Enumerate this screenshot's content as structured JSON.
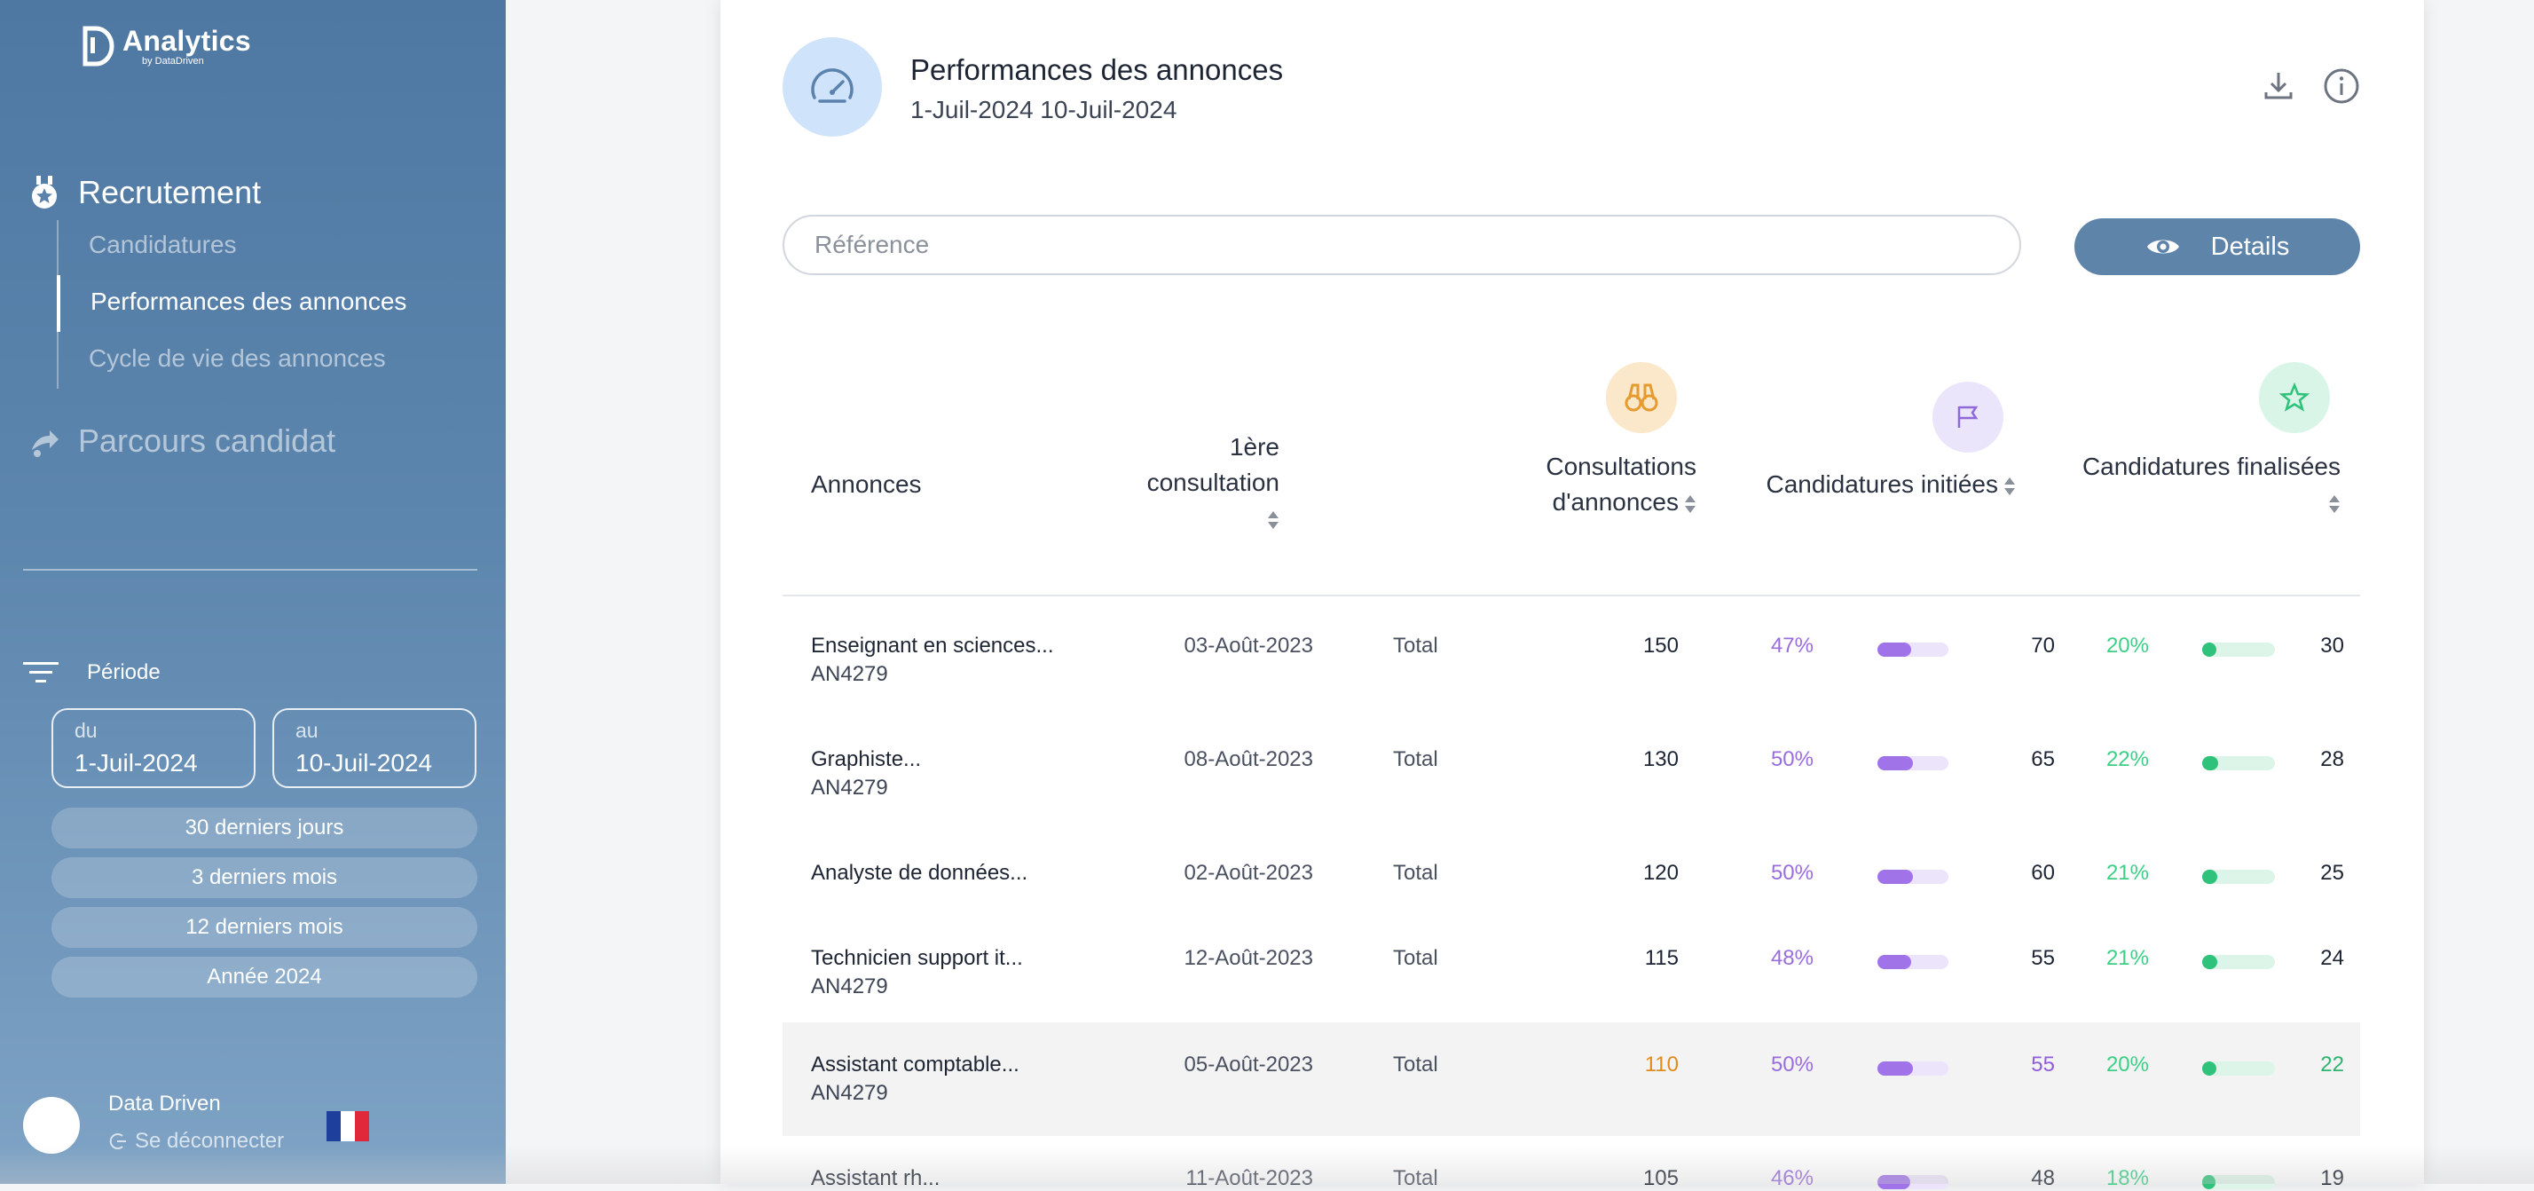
{
  "brand": {
    "name": "Analytics",
    "sub": "by DataDriven"
  },
  "nav": {
    "recrutement": "Recrutement",
    "items": [
      "Candidatures",
      "Performances des annonces",
      "Cycle de vie des annonces"
    ],
    "parcours": "Parcours candidat"
  },
  "periode": {
    "title": "Période",
    "from_label": "du",
    "from_value": "1-Juil-2024",
    "to_label": "au",
    "to_value": "10-Juil-2024",
    "presets": [
      "30 derniers jours",
      "3 derniers mois",
      "12 derniers mois",
      "Année 2024"
    ]
  },
  "user": {
    "name": "Data Driven",
    "logout": "Se déconnecter"
  },
  "header": {
    "title": "Performances des annonces",
    "range": "1-Juil-2024 10-Juil-2024"
  },
  "search": {
    "placeholder": "Référence"
  },
  "details_label": "Details",
  "columns": {
    "annonces": "Annonces",
    "first_1": "1ère",
    "first_2": "consultation",
    "cons_1": "Consultations",
    "cons_2": "d'annonces",
    "initiees": "Candidatures initiées",
    "finalisees": "Candidatures finalisées"
  },
  "colors": {
    "sidebar": "#5d86ae",
    "accent_purple": "#a074e8",
    "accent_green": "#2fc27a",
    "accent_orange": "#e28b1c"
  },
  "rows": [
    {
      "name": "Enseignant en sciences...",
      "ref": "AN4279",
      "date": "03-Août-2023",
      "total": "Total",
      "consultations": "150",
      "init_pct": "47%",
      "init_frac": 0.47,
      "init_val": "70",
      "fin_pct": "20%",
      "fin_frac": 0.2,
      "fin_val": "30"
    },
    {
      "name": "Graphiste...",
      "ref": "AN4279",
      "date": "08-Août-2023",
      "total": "Total",
      "consultations": "130",
      "init_pct": "50%",
      "init_frac": 0.5,
      "init_val": "65",
      "fin_pct": "22%",
      "fin_frac": 0.22,
      "fin_val": "28"
    },
    {
      "name": "Analyste de données...",
      "ref": "",
      "date": "02-Août-2023",
      "total": "Total",
      "consultations": "120",
      "init_pct": "50%",
      "init_frac": 0.5,
      "init_val": "60",
      "fin_pct": "21%",
      "fin_frac": 0.21,
      "fin_val": "25"
    },
    {
      "name": "Technicien support it...",
      "ref": "AN4279",
      "date": "12-Août-2023",
      "total": "Total",
      "consultations": "115",
      "init_pct": "48%",
      "init_frac": 0.48,
      "init_val": "55",
      "fin_pct": "21%",
      "fin_frac": 0.21,
      "fin_val": "24"
    },
    {
      "name": "Assistant comptable...",
      "ref": "AN4279",
      "date": "05-Août-2023",
      "total": "Total",
      "consultations": "110",
      "init_pct": "50%",
      "init_frac": 0.5,
      "init_val": "55",
      "fin_pct": "20%",
      "fin_frac": 0.2,
      "fin_val": "22"
    },
    {
      "name": "Assistant rh...",
      "ref": "",
      "date": "11-Août-2023",
      "total": "Total",
      "consultations": "105",
      "init_pct": "46%",
      "init_frac": 0.46,
      "init_val": "48",
      "fin_pct": "18%",
      "fin_frac": 0.18,
      "fin_val": "19"
    }
  ]
}
